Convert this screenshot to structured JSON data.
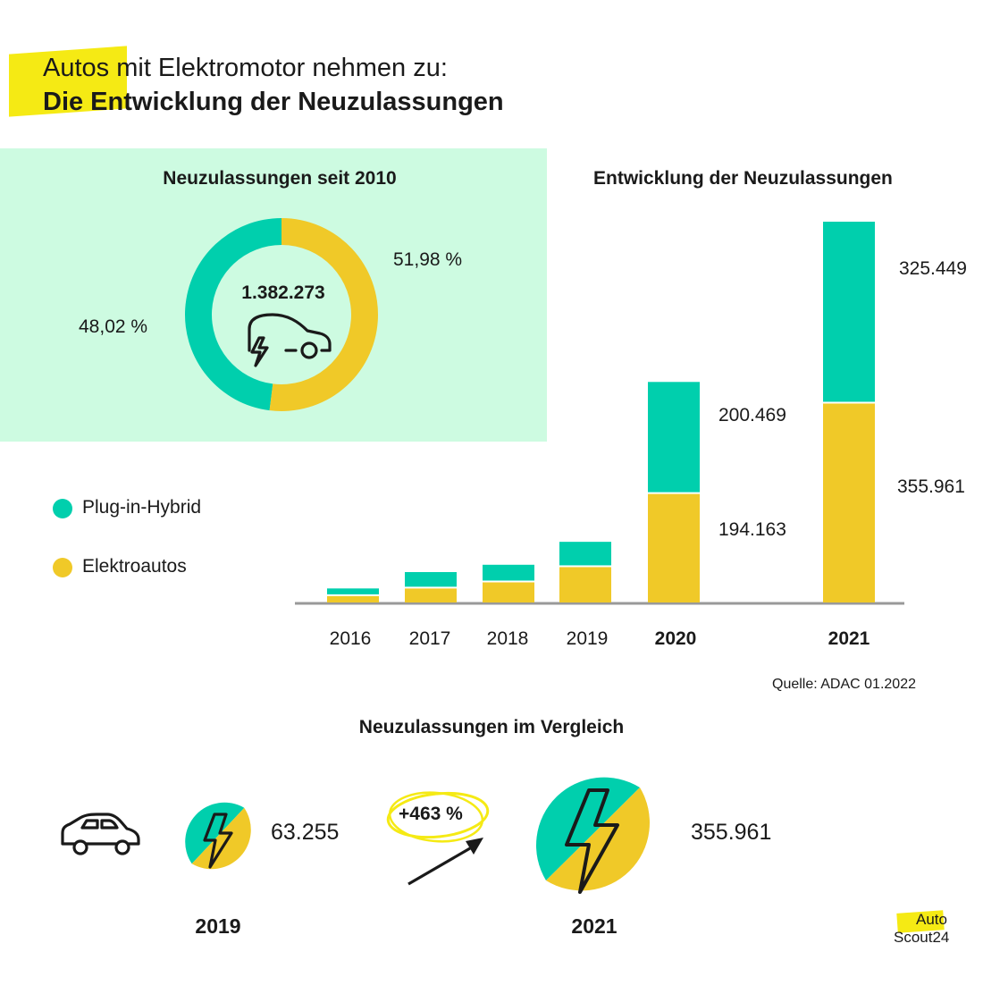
{
  "colors": {
    "hybrid": "#00cfad",
    "elektro": "#f0c928",
    "panel": "#cdfbe1",
    "highlight": "#f5ea14"
  },
  "header": {
    "line1": "Autos mit Elektromotor nehmen zu:",
    "line2": "Die Entwicklung der Neuzulassungen"
  },
  "donut": {
    "title": "Neuzulassungen seit 2010",
    "total": "1.382.273",
    "hybrid_label": "48,02 %",
    "elektro_label": "51,98 %",
    "icon": "electric-car-icon"
  },
  "bars": {
    "title": "Entwicklung der Neuzulassungen",
    "label_2020_hybrid": "200.469",
    "label_2020_elektro": "194.163",
    "label_2021_hybrid": "325.449",
    "label_2021_elektro": "355.961",
    "source": "Quelle: ADAC 01.2022"
  },
  "legend": {
    "hybrid": "Plug-in-Hybrid",
    "elektro": "Elektroautos"
  },
  "chart_data": [
    {
      "type": "pie",
      "title": "Neuzulassungen seit 2010",
      "series": [
        {
          "name": "Plug-in-Hybrid",
          "values": [
            48.02
          ]
        },
        {
          "name": "Elektroautos",
          "values": [
            51.98
          ]
        }
      ],
      "total": 1382273
    },
    {
      "type": "bar",
      "title": "Entwicklung der Neuzulassungen",
      "categories": [
        "2016",
        "2017",
        "2018",
        "2019",
        "2020",
        "2021"
      ],
      "bold_categories": [
        "2020",
        "2021"
      ],
      "stacked": true,
      "series": [
        {
          "name": "Elektroautos",
          "values": [
            11400,
            25000,
            36000,
            63255,
            194163,
            355961
          ]
        },
        {
          "name": "Plug-in-Hybrid",
          "values": [
            13700,
            29400,
            31500,
            45300,
            200469,
            325449
          ]
        }
      ],
      "ylim": [
        0,
        700000
      ]
    }
  ],
  "compare": {
    "title": "Neuzulassungen im Vergleich",
    "value_2019": "63.255",
    "year_2019": "2019",
    "growth": "+463 %",
    "value_2021": "355.961",
    "year_2021": "2021"
  },
  "logo": {
    "line1": "Auto",
    "line2": "Scout24"
  }
}
